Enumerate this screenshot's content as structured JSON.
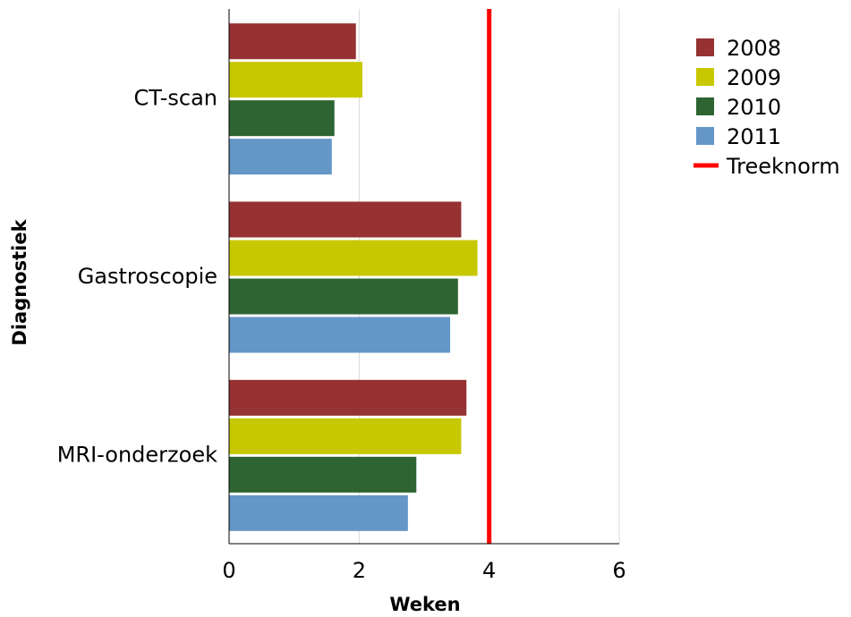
{
  "chart_data": {
    "type": "bar",
    "orientation": "horizontal",
    "categories": [
      "CT-scan",
      "Gastroscopie",
      "MRI-onderzoek"
    ],
    "series": [
      {
        "name": "2008",
        "color": "#963232",
        "values": [
          1.95,
          3.57,
          3.65
        ]
      },
      {
        "name": "2009",
        "color": "#c8c800",
        "values": [
          2.05,
          3.82,
          3.57
        ]
      },
      {
        "name": "2010",
        "color": "#2d6432",
        "values": [
          1.62,
          3.52,
          2.88
        ]
      },
      {
        "name": "2011",
        "color": "#6496c8",
        "values": [
          1.58,
          3.4,
          2.75
        ]
      }
    ],
    "reference_line": {
      "name": "Treeknorm",
      "value": 4,
      "color": "#ff0000"
    },
    "xlabel": "Weken",
    "ylabel": "Diagnostiek",
    "xlim": [
      0,
      6
    ],
    "xticks": [
      "0",
      "2",
      "4",
      "6"
    ],
    "grid": "vertical",
    "legend": "top-right"
  }
}
